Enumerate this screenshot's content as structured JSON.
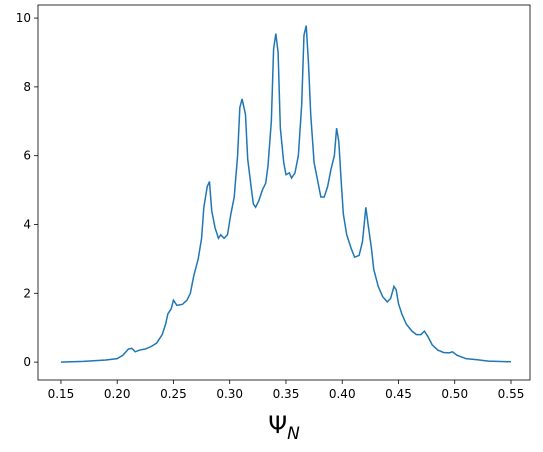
{
  "chart_data": {
    "type": "line",
    "xlabel": "Ψ",
    "xlabel_subscript": "N",
    "x": [
      0.15,
      0.17,
      0.19,
      0.2,
      0.205,
      0.21,
      0.213,
      0.216,
      0.22,
      0.225,
      0.23,
      0.235,
      0.24,
      0.243,
      0.245,
      0.248,
      0.25,
      0.253,
      0.258,
      0.262,
      0.265,
      0.268,
      0.272,
      0.275,
      0.277,
      0.28,
      0.282,
      0.284,
      0.287,
      0.29,
      0.292,
      0.295,
      0.298,
      0.301,
      0.304,
      0.307,
      0.309,
      0.311,
      0.314,
      0.316,
      0.319,
      0.321,
      0.323,
      0.326,
      0.329,
      0.332,
      0.334,
      0.337,
      0.339,
      0.341,
      0.343,
      0.345,
      0.348,
      0.35,
      0.353,
      0.355,
      0.358,
      0.361,
      0.364,
      0.366,
      0.368,
      0.37,
      0.372,
      0.375,
      0.378,
      0.381,
      0.384,
      0.387,
      0.39,
      0.393,
      0.395,
      0.397,
      0.399,
      0.401,
      0.404,
      0.408,
      0.411,
      0.415,
      0.418,
      0.421,
      0.423,
      0.426,
      0.428,
      0.432,
      0.436,
      0.44,
      0.443,
      0.446,
      0.448,
      0.45,
      0.453,
      0.457,
      0.462,
      0.466,
      0.47,
      0.473,
      0.476,
      0.48,
      0.485,
      0.49,
      0.495,
      0.498,
      0.502,
      0.51,
      0.52,
      0.53,
      0.55
    ],
    "series": [
      {
        "color": "#1f77b4",
        "values": [
          0,
          0.02,
          0.06,
          0.1,
          0.2,
          0.38,
          0.4,
          0.3,
          0.35,
          0.38,
          0.45,
          0.55,
          0.8,
          1.1,
          1.4,
          1.55,
          1.8,
          1.65,
          1.68,
          1.8,
          2.0,
          2.5,
          3.0,
          3.6,
          4.5,
          5.1,
          5.25,
          4.4,
          3.9,
          3.6,
          3.7,
          3.6,
          3.7,
          4.3,
          4.8,
          6.0,
          7.4,
          7.65,
          7.2,
          5.9,
          5.1,
          4.6,
          4.5,
          4.7,
          5.0,
          5.2,
          5.7,
          7.0,
          9.1,
          9.55,
          9.0,
          6.8,
          5.8,
          5.45,
          5.5,
          5.35,
          5.5,
          6.0,
          7.5,
          9.5,
          9.78,
          8.7,
          7.2,
          5.8,
          5.3,
          4.8,
          4.8,
          5.1,
          5.6,
          6.0,
          6.8,
          6.4,
          5.3,
          4.3,
          3.7,
          3.3,
          3.05,
          3.1,
          3.5,
          4.5,
          4.0,
          3.3,
          2.7,
          2.2,
          1.9,
          1.75,
          1.85,
          2.2,
          2.1,
          1.7,
          1.4,
          1.1,
          0.9,
          0.8,
          0.8,
          0.9,
          0.75,
          0.5,
          0.35,
          0.28,
          0.27,
          0.3,
          0.2,
          0.1,
          0.07,
          0.03,
          0.01
        ]
      }
    ],
    "xlim": [
      0.1296,
      0.5669
    ],
    "ylim": [
      -0.52,
      10.38
    ],
    "xticks": [
      0.15,
      {
        "value": 0.2,
        "label": "0.20"
      },
      0.25,
      {
        "value": 0.3,
        "label": "0.30"
      },
      0.35,
      {
        "value": 0.4,
        "label": "0.40"
      },
      0.45,
      {
        "value": 0.5,
        "label": "0.50"
      },
      0.55
    ],
    "yticks": [
      0,
      2,
      4,
      6,
      8,
      10
    ]
  }
}
